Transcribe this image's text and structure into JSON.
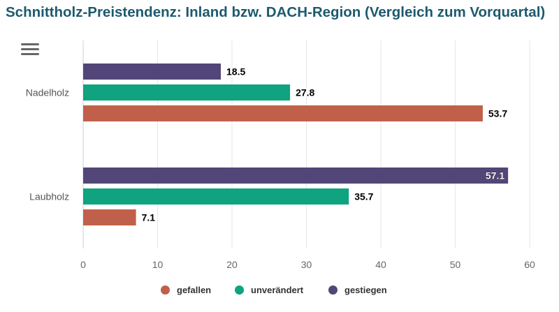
{
  "title": "Schnittholz-Preistendenz: Inland bzw. DACH-Region (Vergleich zum Vorquartal)",
  "menu": {
    "icon": "hamburger-menu-icon"
  },
  "colors": {
    "gefallen": "#c0604a",
    "unverändert": "#0fa37f",
    "gestiegen": "#524679",
    "title": "#1c5a6e"
  },
  "chart_data": {
    "type": "bar",
    "orientation": "horizontal",
    "categories": [
      "Nadelholz",
      "Laubholz"
    ],
    "series": [
      {
        "name": "gestiegen",
        "values": [
          18.5,
          57.1
        ],
        "color": "#524679"
      },
      {
        "name": "unverändert",
        "values": [
          27.8,
          35.7
        ],
        "color": "#0fa37f"
      },
      {
        "name": "gefallen",
        "values": [
          53.7,
          7.1
        ],
        "color": "#c0604a"
      }
    ],
    "xticks": [
      "0",
      "10",
      "20",
      "30",
      "40",
      "50",
      "60"
    ],
    "xlim": [
      0,
      60
    ],
    "grid": true,
    "legend_position": "bottom-center",
    "legend_order": [
      "gefallen",
      "unverändert",
      "gestiegen"
    ]
  }
}
